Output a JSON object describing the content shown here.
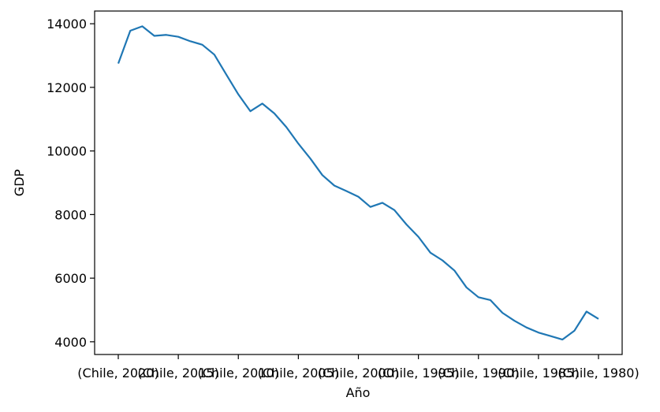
{
  "chart_data": {
    "type": "line",
    "title": "",
    "xlabel": "Año",
    "ylabel": "GDP",
    "ylim": [
      3600,
      14400
    ],
    "yticks": [
      4000,
      6000,
      8000,
      10000,
      12000,
      14000
    ],
    "xtick_labels": [
      "(Chile, 2020)",
      "(Chile, 2015)",
      "(Chile, 2010)",
      "(Chile, 2005)",
      "(Chile, 2000)",
      "(Chile, 1995)",
      "(Chile, 1990)",
      "(Chile, 1985)",
      "(Chile, 1980)"
    ],
    "grid": false,
    "legend": "none",
    "line_color": "#1f77b4",
    "series": [
      {
        "values": [
          12750,
          13780,
          13920,
          13620,
          13650,
          13590,
          13450,
          13340,
          13030,
          12400,
          11780,
          11250,
          11490,
          11180,
          10750,
          10230,
          9760,
          9240,
          8910,
          8740,
          8560,
          8240,
          8370,
          8140,
          7690,
          7300,
          6800,
          6560,
          6240,
          5710,
          5400,
          5310,
          4910,
          4660,
          4450,
          4290,
          4180,
          4070,
          4350,
          4950,
          4720
        ]
      }
    ]
  }
}
